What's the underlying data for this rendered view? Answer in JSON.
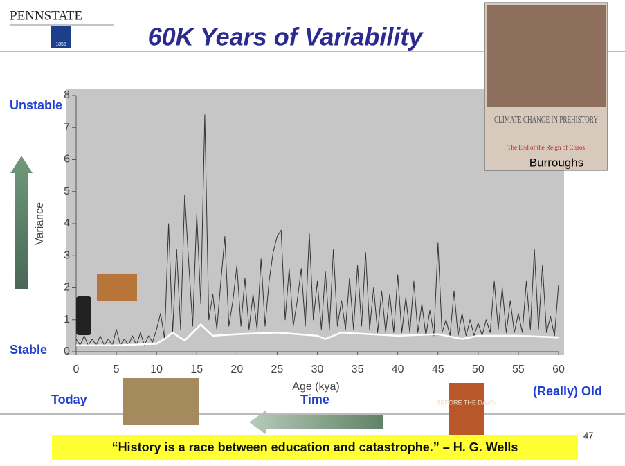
{
  "header": {
    "logo": "PENNSTATE",
    "year": "1855",
    "title": "60K Years of Variability"
  },
  "book1": {
    "title": "CLIMATE CHANGE IN PREHISTORY",
    "subtitle": "The End of the Reign of Chaos",
    "author": "Burroughs"
  },
  "book2": {
    "title": "BEFORE THE DAWN"
  },
  "labels": {
    "unstable": "Unstable",
    "stable": "Stable",
    "today": "Today",
    "time": "Time",
    "old": "(Really) Old"
  },
  "quote": "“History is a race between education and catastrophe.” – H. G. Wells",
  "page_number": "47",
  "chart_data": {
    "type": "line",
    "x_label": "Age (kya)",
    "y_label": "Variance",
    "x": [
      0,
      0.5,
      1,
      1.5,
      2,
      2.5,
      3,
      3.5,
      4,
      4.5,
      5,
      5.5,
      6,
      6.5,
      7,
      7.5,
      8,
      8.5,
      9,
      9.5,
      10,
      10.5,
      11,
      11.5,
      12,
      12.5,
      13,
      13.5,
      14,
      14.5,
      15,
      15.5,
      16,
      16.5,
      17,
      17.5,
      18,
      18.5,
      19,
      19.5,
      20,
      20.5,
      21,
      21.5,
      22,
      22.5,
      23,
      23.5,
      24,
      24.5,
      25,
      25.5,
      26,
      26.5,
      27,
      27.5,
      28,
      28.5,
      29,
      29.5,
      30,
      30.5,
      31,
      31.5,
      32,
      32.5,
      33,
      33.5,
      34,
      34.5,
      35,
      35.5,
      36,
      36.5,
      37,
      37.5,
      38,
      38.5,
      39,
      39.5,
      40,
      40.5,
      41,
      41.5,
      42,
      42.5,
      43,
      43.5,
      44,
      44.5,
      45,
      45.5,
      46,
      46.5,
      47,
      47.5,
      48,
      48.5,
      49,
      49.5,
      50,
      50.5,
      51,
      51.5,
      52,
      52.5,
      53,
      53.5,
      54,
      54.5,
      55,
      55.5,
      56,
      56.5,
      57,
      57.5,
      58,
      58.5,
      59,
      59.5,
      60
    ],
    "series": [
      {
        "color": "#333333",
        "values": [
          0.4,
          0.2,
          0.5,
          0.2,
          0.4,
          0.2,
          0.5,
          0.2,
          0.4,
          0.2,
          0.7,
          0.2,
          0.4,
          0.2,
          0.5,
          0.2,
          0.6,
          0.2,
          0.5,
          0.3,
          0.7,
          1.2,
          0.4,
          4.0,
          0.6,
          3.2,
          0.7,
          4.9,
          2.8,
          0.8,
          4.3,
          1.5,
          7.4,
          1.0,
          1.8,
          0.7,
          2.2,
          3.6,
          0.8,
          1.6,
          2.7,
          0.8,
          2.3,
          0.7,
          1.8,
          0.7,
          2.9,
          0.8,
          2.2,
          3.1,
          3.6,
          3.8,
          1.0,
          2.6,
          0.8,
          1.6,
          2.6,
          0.8,
          3.7,
          1.0,
          2.2,
          0.7,
          2.5,
          0.7,
          3.2,
          0.8,
          1.6,
          0.7,
          2.3,
          0.7,
          2.7,
          0.8,
          3.1,
          0.7,
          2.0,
          0.6,
          1.9,
          0.6,
          1.8,
          0.6,
          2.4,
          0.6,
          1.7,
          0.6,
          2.2,
          0.6,
          1.5,
          0.5,
          1.3,
          0.5,
          3.4,
          0.6,
          1.0,
          0.5,
          1.9,
          0.5,
          1.2,
          0.5,
          1.0,
          0.5,
          0.9,
          0.5,
          1.0,
          0.6,
          2.2,
          0.7,
          2.0,
          0.6,
          1.6,
          0.6,
          1.2,
          0.6,
          2.2,
          0.7,
          3.2,
          0.7,
          2.7,
          0.6,
          1.1,
          0.5,
          2.1
        ]
      },
      {
        "color": "#ffffff",
        "x": [
          0,
          5,
          10,
          11,
          12,
          13.5,
          15.5,
          17,
          20,
          25,
          30,
          31,
          33,
          40,
          45,
          48,
          50,
          55,
          60
        ],
        "values": [
          0.2,
          0.2,
          0.25,
          0.4,
          0.6,
          0.35,
          0.85,
          0.5,
          0.55,
          0.6,
          0.5,
          0.4,
          0.6,
          0.5,
          0.55,
          0.4,
          0.5,
          0.5,
          0.45
        ]
      }
    ],
    "xlim": [
      0,
      60
    ],
    "ylim": [
      0,
      8
    ],
    "xticks": [
      0,
      5,
      10,
      15,
      20,
      25,
      30,
      35,
      40,
      45,
      50,
      55,
      60
    ],
    "yticks": [
      0,
      1,
      2,
      3,
      4,
      5,
      6,
      7,
      8
    ]
  }
}
